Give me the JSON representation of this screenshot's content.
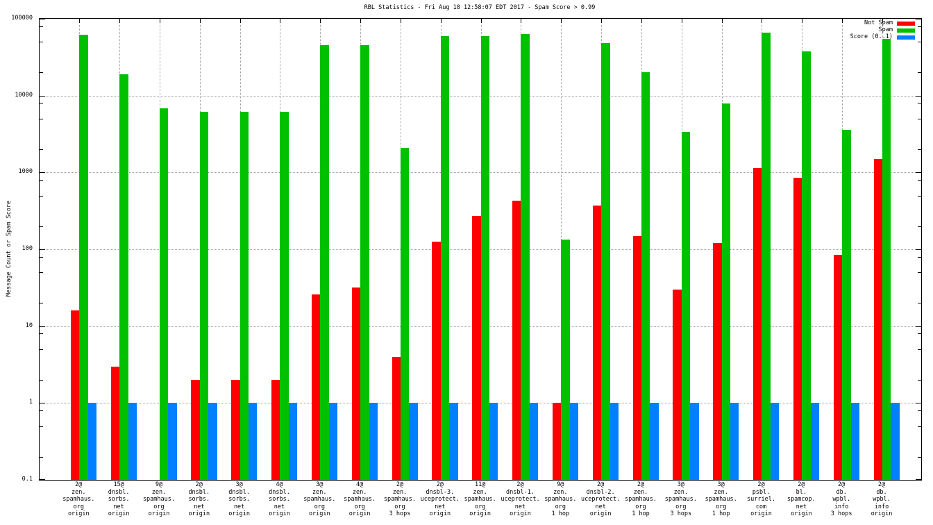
{
  "chart_data": {
    "type": "bar",
    "title": "RBL Statistics - Fri Aug 18 12:58:07 EDT 2017 - Spam Score > 0.99",
    "ylabel": "Message Count or Spam Score",
    "xlabel": "",
    "y_scale": "log",
    "ylim": [
      0.1,
      100000
    ],
    "y_tick_labels": [
      "100000",
      "10000",
      "1000",
      "100",
      "10",
      "1",
      "0.1"
    ],
    "grid": true,
    "legend_position": "top-right-inside",
    "categories": [
      [
        "2@",
        "zen.",
        "spamhaus.",
        "org",
        "origin"
      ],
      [
        "15@",
        "dnsbl.",
        "sorbs.",
        "net",
        "origin"
      ],
      [
        "9@",
        "zen.",
        "spamhaus.",
        "org",
        "origin"
      ],
      [
        "2@",
        "dnsbl.",
        "sorbs.",
        "net",
        "origin"
      ],
      [
        "3@",
        "dnsbl.",
        "sorbs.",
        "net",
        "origin"
      ],
      [
        "4@",
        "dnsbl.",
        "sorbs.",
        "net",
        "origin"
      ],
      [
        "3@",
        "zen.",
        "spamhaus.",
        "org",
        "origin"
      ],
      [
        "4@",
        "zen.",
        "spamhaus.",
        "org",
        "origin"
      ],
      [
        "2@",
        "zen.",
        "spamhaus.",
        "org",
        "3 hops"
      ],
      [
        "2@",
        "dnsbl-3.",
        "uceprotect.",
        "net",
        "origin"
      ],
      [
        "11@",
        "zen.",
        "spamhaus.",
        "org",
        "origin"
      ],
      [
        "2@",
        "dnsbl-1.",
        "uceprotect.",
        "net",
        "origin"
      ],
      [
        "9@",
        "zen.",
        "spamhaus.",
        "org",
        "1 hop"
      ],
      [
        "2@",
        "dnsbl-2.",
        "uceprotect.",
        "net",
        "origin"
      ],
      [
        "2@",
        "zen.",
        "spamhaus.",
        "org",
        "1 hop"
      ],
      [
        "3@",
        "zen.",
        "spamhaus.",
        "org",
        "3 hops"
      ],
      [
        "3@",
        "zen.",
        "spamhaus.",
        "org",
        "1 hop"
      ],
      [
        "2@",
        "psbl.",
        "surriel.",
        "com",
        "origin"
      ],
      [
        "2@",
        "bl.",
        "spamcop.",
        "net",
        "origin"
      ],
      [
        "2@",
        "db.",
        "wpbl.",
        "info",
        "3 hops"
      ],
      [
        "2@",
        "db.",
        "wpbl.",
        "info",
        "origin"
      ]
    ],
    "series": [
      {
        "name": "Not Spam",
        "color": "#ff0000",
        "values": [
          16,
          3,
          0,
          2,
          2,
          2,
          26,
          32,
          4,
          125,
          270,
          430,
          1,
          370,
          150,
          30,
          120,
          1150,
          860,
          85,
          1500
        ]
      },
      {
        "name": "Spam",
        "color": "#00c000",
        "values": [
          62000,
          19000,
          6900,
          6200,
          6200,
          6200,
          45000,
          45000,
          2100,
          60000,
          60000,
          63000,
          135,
          48000,
          20000,
          3400,
          7900,
          66000,
          38000,
          3600,
          55000
        ]
      },
      {
        "name": "Score (0..1)",
        "color": "#0080ff",
        "values": [
          1,
          1,
          1,
          1,
          1,
          1,
          1,
          1,
          1,
          1,
          1,
          1,
          1,
          1,
          1,
          1,
          1,
          1,
          1,
          1,
          1
        ]
      }
    ]
  }
}
